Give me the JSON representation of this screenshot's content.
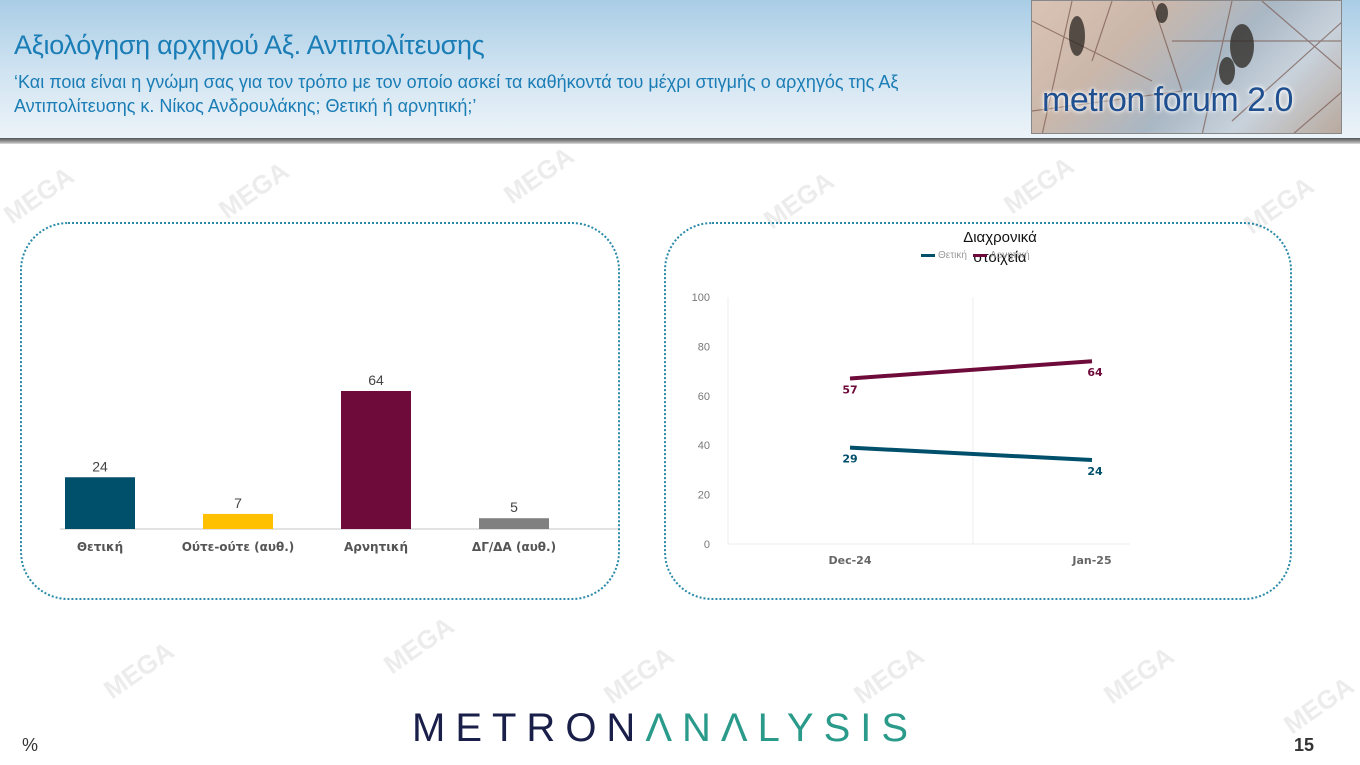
{
  "header": {
    "title": "Αξιολόγηση αρχηγού Αξ. Αντιπολίτευσης",
    "subtitle": "‘Και ποια είναι η γνώμη σας για τον τρόπο με τον οποίο ασκεί τα καθήκοντά του μέχρι στιγμής ο αρχηγός της Αξ Αντιπολίτευσης κ. Νίκος Ανδρουλάκης; Θετική ή αρνητική;’",
    "logo_text": "metron forum 2.0"
  },
  "footer": {
    "brand_part1": "METRON",
    "brand_part2": "ΛNΛLYSIS",
    "unit": "%",
    "page_number": "15"
  },
  "watermark": "MEGA",
  "colors": {
    "positive": "#004f6b",
    "neither": "#ffc000",
    "negative": "#6e0b3a",
    "dk": "#808080",
    "title_blue": "#1a7db5"
  },
  "chart_data": [
    {
      "type": "bar",
      "title": "",
      "categories": [
        "Θετική",
        "Ούτε-ούτε (αυθ.)",
        "Αρνητική",
        "ΔΓ/ΔΑ (αυθ.)"
      ],
      "values": [
        24,
        7,
        64,
        5
      ],
      "colors": [
        "#004f6b",
        "#ffc000",
        "#6e0b3a",
        "#808080"
      ],
      "xlabel": "",
      "ylabel": "",
      "grid": false,
      "data_labels": true
    },
    {
      "type": "line",
      "title": "Διαχρονικά στοιχεία",
      "x": [
        "Dec-24",
        "Jan-25"
      ],
      "series": [
        {
          "name": "Θετική",
          "values": [
            29,
            24
          ],
          "color": "#004f6b"
        },
        {
          "name": "Αρνητική",
          "values": [
            57,
            64
          ],
          "color": "#6e0b3a"
        }
      ],
      "yticks": [
        0,
        20,
        40,
        60,
        80,
        100
      ],
      "ylim": [
        0,
        100
      ],
      "legend_position": "top",
      "xlabel": "",
      "ylabel": ""
    }
  ]
}
